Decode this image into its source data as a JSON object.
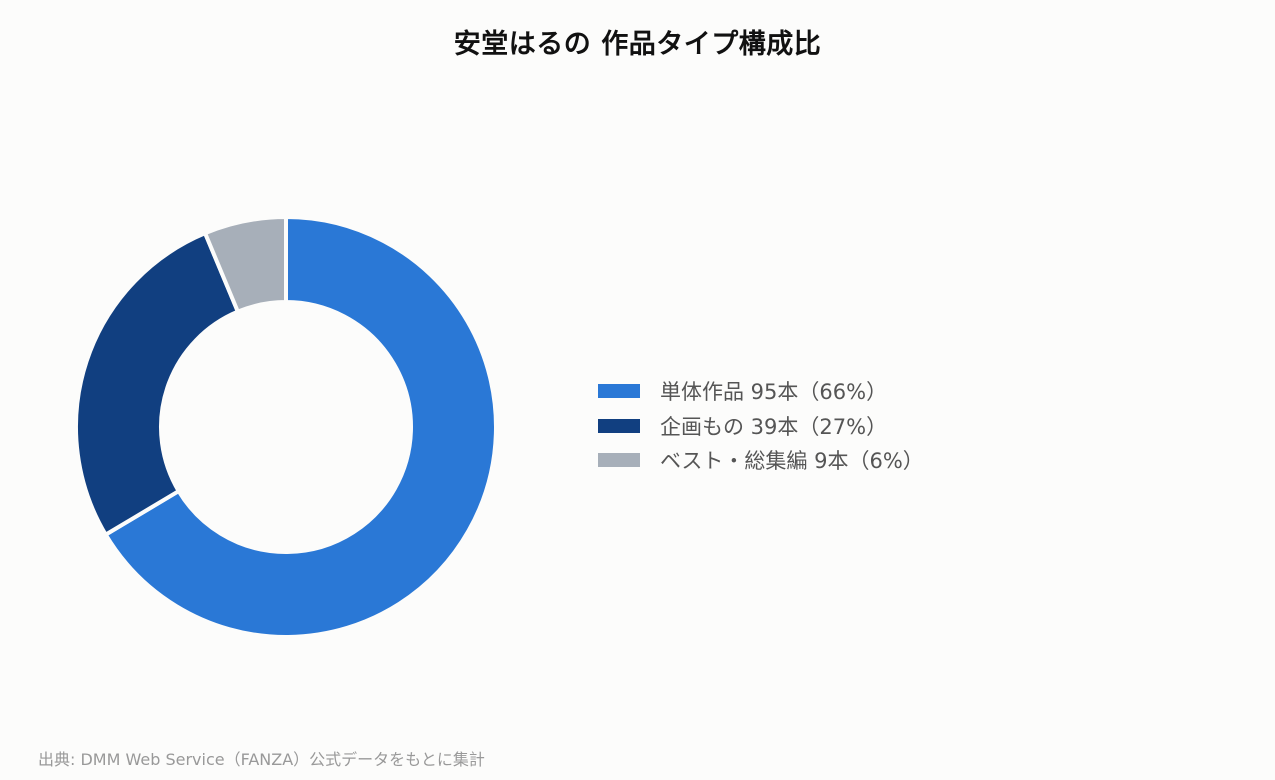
{
  "chart_data": {
    "type": "pie",
    "title": "安堂はるの 作品タイプ構成比",
    "categories": [
      "単体作品",
      "企画もの",
      "ベスト・総集編"
    ],
    "values": [
      95,
      39,
      9
    ],
    "legend": {
      "position": "right",
      "entries": [
        {
          "label": "単体作品 95本（66%）",
          "color": "#2a78d6"
        },
        {
          "label": "企画もの 39本（27%）",
          "color": "#113f80"
        },
        {
          "label": "ベスト・総集編 9本（6%）",
          "color": "#a7afb9"
        }
      ]
    }
  },
  "source_note": "出典: DMM Web Service（FANZA）公式データをもとに集計"
}
